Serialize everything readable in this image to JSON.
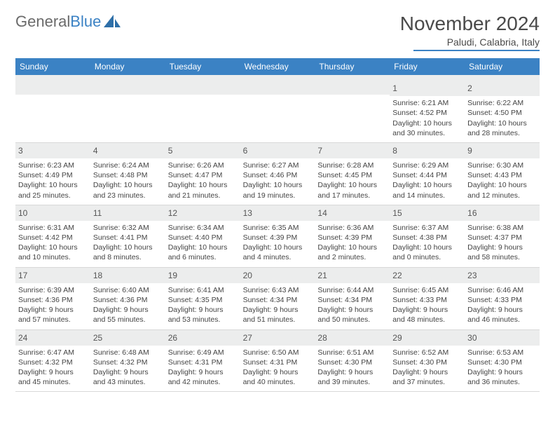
{
  "logo": {
    "text_gray": "General",
    "text_blue": "Blue"
  },
  "title": "November 2024",
  "location": "Paludi, Calabria, Italy",
  "colors": {
    "header_bg": "#3b82c4",
    "header_fg": "#ffffff",
    "daynum_bg": "#eceded",
    "text": "#444444",
    "border": "#d8d8d8"
  },
  "day_headers": [
    "Sunday",
    "Monday",
    "Tuesday",
    "Wednesday",
    "Thursday",
    "Friday",
    "Saturday"
  ],
  "weeks": [
    [
      {
        "blank": true
      },
      {
        "blank": true
      },
      {
        "blank": true
      },
      {
        "blank": true
      },
      {
        "blank": true
      },
      {
        "day": "1",
        "sunrise": "Sunrise: 6:21 AM",
        "sunset": "Sunset: 4:52 PM",
        "daylight": "Daylight: 10 hours and 30 minutes."
      },
      {
        "day": "2",
        "sunrise": "Sunrise: 6:22 AM",
        "sunset": "Sunset: 4:50 PM",
        "daylight": "Daylight: 10 hours and 28 minutes."
      }
    ],
    [
      {
        "day": "3",
        "sunrise": "Sunrise: 6:23 AM",
        "sunset": "Sunset: 4:49 PM",
        "daylight": "Daylight: 10 hours and 25 minutes."
      },
      {
        "day": "4",
        "sunrise": "Sunrise: 6:24 AM",
        "sunset": "Sunset: 4:48 PM",
        "daylight": "Daylight: 10 hours and 23 minutes."
      },
      {
        "day": "5",
        "sunrise": "Sunrise: 6:26 AM",
        "sunset": "Sunset: 4:47 PM",
        "daylight": "Daylight: 10 hours and 21 minutes."
      },
      {
        "day": "6",
        "sunrise": "Sunrise: 6:27 AM",
        "sunset": "Sunset: 4:46 PM",
        "daylight": "Daylight: 10 hours and 19 minutes."
      },
      {
        "day": "7",
        "sunrise": "Sunrise: 6:28 AM",
        "sunset": "Sunset: 4:45 PM",
        "daylight": "Daylight: 10 hours and 17 minutes."
      },
      {
        "day": "8",
        "sunrise": "Sunrise: 6:29 AM",
        "sunset": "Sunset: 4:44 PM",
        "daylight": "Daylight: 10 hours and 14 minutes."
      },
      {
        "day": "9",
        "sunrise": "Sunrise: 6:30 AM",
        "sunset": "Sunset: 4:43 PM",
        "daylight": "Daylight: 10 hours and 12 minutes."
      }
    ],
    [
      {
        "day": "10",
        "sunrise": "Sunrise: 6:31 AM",
        "sunset": "Sunset: 4:42 PM",
        "daylight": "Daylight: 10 hours and 10 minutes."
      },
      {
        "day": "11",
        "sunrise": "Sunrise: 6:32 AM",
        "sunset": "Sunset: 4:41 PM",
        "daylight": "Daylight: 10 hours and 8 minutes."
      },
      {
        "day": "12",
        "sunrise": "Sunrise: 6:34 AM",
        "sunset": "Sunset: 4:40 PM",
        "daylight": "Daylight: 10 hours and 6 minutes."
      },
      {
        "day": "13",
        "sunrise": "Sunrise: 6:35 AM",
        "sunset": "Sunset: 4:39 PM",
        "daylight": "Daylight: 10 hours and 4 minutes."
      },
      {
        "day": "14",
        "sunrise": "Sunrise: 6:36 AM",
        "sunset": "Sunset: 4:39 PM",
        "daylight": "Daylight: 10 hours and 2 minutes."
      },
      {
        "day": "15",
        "sunrise": "Sunrise: 6:37 AM",
        "sunset": "Sunset: 4:38 PM",
        "daylight": "Daylight: 10 hours and 0 minutes."
      },
      {
        "day": "16",
        "sunrise": "Sunrise: 6:38 AM",
        "sunset": "Sunset: 4:37 PM",
        "daylight": "Daylight: 9 hours and 58 minutes."
      }
    ],
    [
      {
        "day": "17",
        "sunrise": "Sunrise: 6:39 AM",
        "sunset": "Sunset: 4:36 PM",
        "daylight": "Daylight: 9 hours and 57 minutes."
      },
      {
        "day": "18",
        "sunrise": "Sunrise: 6:40 AM",
        "sunset": "Sunset: 4:36 PM",
        "daylight": "Daylight: 9 hours and 55 minutes."
      },
      {
        "day": "19",
        "sunrise": "Sunrise: 6:41 AM",
        "sunset": "Sunset: 4:35 PM",
        "daylight": "Daylight: 9 hours and 53 minutes."
      },
      {
        "day": "20",
        "sunrise": "Sunrise: 6:43 AM",
        "sunset": "Sunset: 4:34 PM",
        "daylight": "Daylight: 9 hours and 51 minutes."
      },
      {
        "day": "21",
        "sunrise": "Sunrise: 6:44 AM",
        "sunset": "Sunset: 4:34 PM",
        "daylight": "Daylight: 9 hours and 50 minutes."
      },
      {
        "day": "22",
        "sunrise": "Sunrise: 6:45 AM",
        "sunset": "Sunset: 4:33 PM",
        "daylight": "Daylight: 9 hours and 48 minutes."
      },
      {
        "day": "23",
        "sunrise": "Sunrise: 6:46 AM",
        "sunset": "Sunset: 4:33 PM",
        "daylight": "Daylight: 9 hours and 46 minutes."
      }
    ],
    [
      {
        "day": "24",
        "sunrise": "Sunrise: 6:47 AM",
        "sunset": "Sunset: 4:32 PM",
        "daylight": "Daylight: 9 hours and 45 minutes."
      },
      {
        "day": "25",
        "sunrise": "Sunrise: 6:48 AM",
        "sunset": "Sunset: 4:32 PM",
        "daylight": "Daylight: 9 hours and 43 minutes."
      },
      {
        "day": "26",
        "sunrise": "Sunrise: 6:49 AM",
        "sunset": "Sunset: 4:31 PM",
        "daylight": "Daylight: 9 hours and 42 minutes."
      },
      {
        "day": "27",
        "sunrise": "Sunrise: 6:50 AM",
        "sunset": "Sunset: 4:31 PM",
        "daylight": "Daylight: 9 hours and 40 minutes."
      },
      {
        "day": "28",
        "sunrise": "Sunrise: 6:51 AM",
        "sunset": "Sunset: 4:30 PM",
        "daylight": "Daylight: 9 hours and 39 minutes."
      },
      {
        "day": "29",
        "sunrise": "Sunrise: 6:52 AM",
        "sunset": "Sunset: 4:30 PM",
        "daylight": "Daylight: 9 hours and 37 minutes."
      },
      {
        "day": "30",
        "sunrise": "Sunrise: 6:53 AM",
        "sunset": "Sunset: 4:30 PM",
        "daylight": "Daylight: 9 hours and 36 minutes."
      }
    ]
  ]
}
